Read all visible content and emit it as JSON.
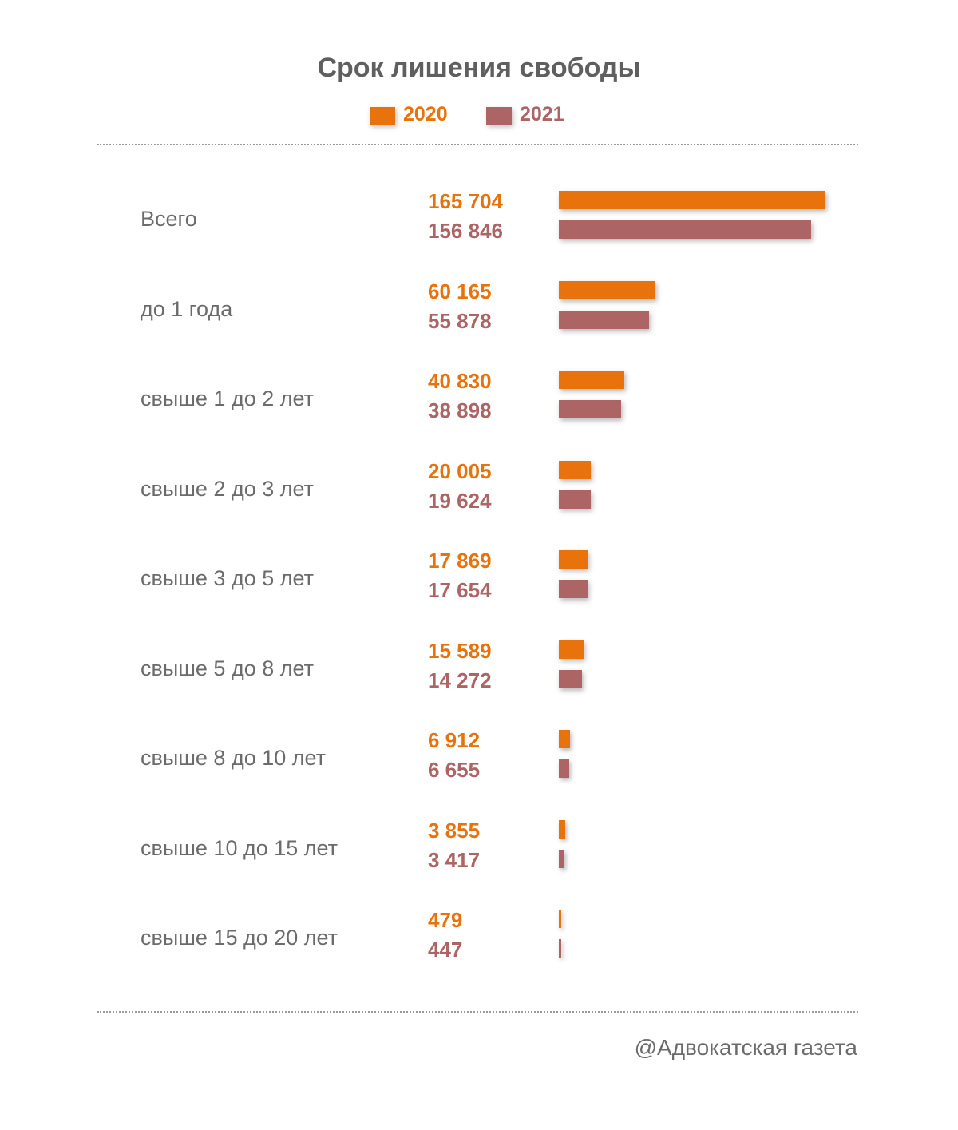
{
  "chart_data": {
    "type": "bar",
    "orientation": "horizontal",
    "title": "Срок лишения свободы",
    "categories": [
      "Всего",
      "до 1 года",
      "свыше 1 до 2 лет",
      "свыше 2 до 3 лет",
      "свыше 3 до 5 лет",
      "свыше 5 до 8 лет",
      "свыше 8 до 10 лет",
      "свыше 10 до 15 лет",
      "свыше 15 до 20 лет"
    ],
    "series": [
      {
        "name": "2020",
        "color": "#e8720c",
        "values": [
          165704,
          60165,
          40830,
          20005,
          17869,
          15589,
          6912,
          3855,
          479
        ],
        "labels": [
          "165 704",
          "60 165",
          "40 830",
          "20 005",
          "17 869",
          "15 589",
          "6 912",
          "3 855",
          "479"
        ]
      },
      {
        "name": "2021",
        "color": "#ad6464",
        "values": [
          156846,
          55878,
          38898,
          19624,
          17654,
          14272,
          6655,
          3417,
          447
        ],
        "labels": [
          "156 846",
          "55 878",
          "38 898",
          "19 624",
          "17 654",
          "14 272",
          "6 655",
          "3 417",
          "447"
        ]
      }
    ],
    "legend_position": "top-center",
    "grid": false
  },
  "source": "@Адвокатская газета"
}
